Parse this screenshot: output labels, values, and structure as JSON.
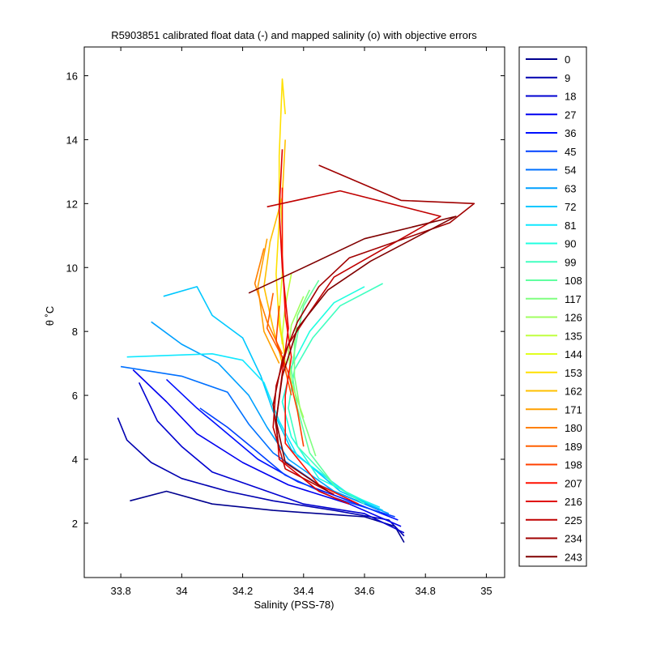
{
  "chart_data": {
    "type": "line",
    "title": "R5903851 calibrated float data (-) and mapped salinity (o) with objective errors",
    "xlabel": "Salinity (PSS-78)",
    "ylabel": "θ ˚C",
    "xlim": [
      33.68,
      35.06
    ],
    "ylim": [
      0.3,
      16.9
    ],
    "xticks": [
      33.8,
      34,
      34.2,
      34.4,
      34.6,
      34.8,
      35
    ],
    "xtick_labels": [
      "33.8",
      "34",
      "34.2",
      "34.4",
      "34.6",
      "34.8",
      "35"
    ],
    "yticks": [
      2,
      4,
      6,
      8,
      10,
      12,
      14,
      16
    ],
    "ytick_labels": [
      "2",
      "4",
      "6",
      "8",
      "10",
      "12",
      "14",
      "16"
    ],
    "grid": false,
    "legend_position": "outside-right",
    "colormap": [
      "#00008f",
      "#0000ff",
      "#0080ff",
      "#00ffff",
      "#80ff80",
      "#ffff00",
      "#ff8000",
      "#ff0000",
      "#800000"
    ],
    "profile_groups": [
      {
        "cycle": 0,
        "color": "#00008f",
        "points": [
          [
            33.83,
            2.7
          ],
          [
            33.95,
            3.0
          ],
          [
            34.1,
            2.6
          ],
          [
            34.3,
            2.4
          ],
          [
            34.45,
            2.3
          ],
          [
            34.6,
            2.2
          ],
          [
            34.7,
            1.9
          ],
          [
            34.73,
            1.4
          ]
        ]
      },
      {
        "cycle": 9,
        "color": "#0000b0",
        "points": [
          [
            33.79,
            5.3
          ],
          [
            33.82,
            4.6
          ],
          [
            33.9,
            3.9
          ],
          [
            34.0,
            3.4
          ],
          [
            34.15,
            3.0
          ],
          [
            34.3,
            2.7
          ],
          [
            34.5,
            2.4
          ],
          [
            34.68,
            2.1
          ],
          [
            34.73,
            1.6
          ]
        ]
      },
      {
        "cycle": 18,
        "color": "#0000d0",
        "points": [
          [
            33.86,
            6.4
          ],
          [
            33.92,
            5.2
          ],
          [
            34.0,
            4.4
          ],
          [
            34.1,
            3.6
          ],
          [
            34.25,
            3.1
          ],
          [
            34.4,
            2.6
          ],
          [
            34.6,
            2.3
          ],
          [
            34.73,
            1.7
          ]
        ]
      },
      {
        "cycle": 27,
        "color": "#0000f0",
        "points": [
          [
            33.84,
            6.8
          ],
          [
            33.95,
            5.8
          ],
          [
            34.05,
            4.8
          ],
          [
            34.2,
            3.9
          ],
          [
            34.35,
            3.2
          ],
          [
            34.55,
            2.6
          ],
          [
            34.72,
            1.9
          ]
        ]
      },
      {
        "cycle": 36,
        "color": "#0010ff",
        "points": [
          [
            33.95,
            6.5
          ],
          [
            34.05,
            5.6
          ],
          [
            34.15,
            4.8
          ],
          [
            34.25,
            4.0
          ],
          [
            34.38,
            3.3
          ],
          [
            34.55,
            2.7
          ],
          [
            34.71,
            2.1
          ]
        ]
      },
      {
        "cycle": 45,
        "color": "#0040ff",
        "points": [
          [
            34.06,
            5.6
          ],
          [
            34.15,
            5.0
          ],
          [
            34.24,
            4.3
          ],
          [
            34.34,
            3.5
          ],
          [
            34.5,
            2.8
          ],
          [
            34.7,
            2.2
          ]
        ]
      },
      {
        "cycle": 54,
        "color": "#0070ff",
        "points": [
          [
            33.8,
            6.9
          ],
          [
            34.0,
            6.6
          ],
          [
            34.15,
            6.1
          ],
          [
            34.22,
            5.1
          ],
          [
            34.3,
            4.2
          ],
          [
            34.45,
            3.2
          ],
          [
            34.65,
            2.4
          ]
        ]
      },
      {
        "cycle": 63,
        "color": "#00a0ff",
        "points": [
          [
            33.9,
            8.3
          ],
          [
            34.0,
            7.6
          ],
          [
            34.12,
            7.0
          ],
          [
            34.22,
            6.0
          ],
          [
            34.28,
            5.0
          ],
          [
            34.35,
            4.0
          ],
          [
            34.5,
            3.0
          ],
          [
            34.68,
            2.3
          ]
        ]
      },
      {
        "cycle": 72,
        "color": "#00c8ff",
        "points": [
          [
            33.94,
            9.1
          ],
          [
            34.05,
            9.4
          ],
          [
            34.1,
            8.5
          ],
          [
            34.2,
            7.8
          ],
          [
            34.26,
            6.6
          ],
          [
            34.3,
            5.5
          ],
          [
            34.36,
            4.3
          ],
          [
            34.52,
            3.0
          ],
          [
            34.66,
            2.4
          ]
        ]
      },
      {
        "cycle": 81,
        "color": "#10e8ff",
        "points": [
          [
            33.82,
            7.2
          ],
          [
            34.1,
            7.3
          ],
          [
            34.2,
            7.1
          ],
          [
            34.27,
            6.4
          ],
          [
            34.32,
            5.2
          ],
          [
            34.38,
            4.1
          ],
          [
            34.55,
            2.9
          ],
          [
            34.65,
            2.5
          ]
        ]
      },
      {
        "cycle": 90,
        "color": "#20ffe0",
        "points": [
          [
            34.6,
            9.4
          ],
          [
            34.5,
            8.9
          ],
          [
            34.42,
            8.0
          ],
          [
            34.36,
            6.9
          ],
          [
            34.33,
            5.8
          ],
          [
            34.36,
            4.7
          ],
          [
            34.45,
            3.4
          ],
          [
            34.62,
            2.6
          ]
        ]
      },
      {
        "cycle": 99,
        "color": "#40ffc0",
        "points": [
          [
            34.66,
            9.5
          ],
          [
            34.52,
            8.8
          ],
          [
            34.43,
            7.8
          ],
          [
            34.37,
            6.8
          ],
          [
            34.35,
            5.6
          ],
          [
            34.38,
            4.4
          ],
          [
            34.5,
            3.2
          ],
          [
            34.6,
            2.6
          ]
        ]
      },
      {
        "cycle": 108,
        "color": "#60ffa0",
        "points": [
          [
            34.45,
            9.6
          ],
          [
            34.4,
            8.8
          ],
          [
            34.38,
            7.9
          ],
          [
            34.36,
            6.8
          ],
          [
            34.38,
            5.6
          ],
          [
            34.42,
            4.2
          ],
          [
            34.5,
            3.2
          ]
        ]
      },
      {
        "cycle": 117,
        "color": "#80ff80",
        "points": [
          [
            34.42,
            9.3
          ],
          [
            34.38,
            8.5
          ],
          [
            34.37,
            7.6
          ],
          [
            34.37,
            6.6
          ],
          [
            34.39,
            5.5
          ],
          [
            34.44,
            4.1
          ]
        ]
      },
      {
        "cycle": 126,
        "color": "#a0ff60",
        "points": [
          [
            34.4,
            9.1
          ],
          [
            34.36,
            8.2
          ],
          [
            34.35,
            7.4
          ],
          [
            34.36,
            6.4
          ],
          [
            34.4,
            5.3
          ]
        ]
      },
      {
        "cycle": 135,
        "color": "#c0ff40",
        "points": [
          [
            34.36,
            9.8
          ],
          [
            34.34,
            8.8
          ],
          [
            34.33,
            7.9
          ],
          [
            34.34,
            7.0
          ]
        ]
      },
      {
        "cycle": 144,
        "color": "#e0ff20",
        "points": [
          [
            34.32,
            12.6
          ],
          [
            34.33,
            11.2
          ],
          [
            34.33,
            9.8
          ],
          [
            34.32,
            8.6
          ],
          [
            34.33,
            7.6
          ]
        ]
      },
      {
        "cycle": 153,
        "color": "#ffe000",
        "points": [
          [
            34.34,
            14.8
          ],
          [
            34.33,
            15.9
          ],
          [
            34.32,
            13.5
          ],
          [
            34.32,
            11.5
          ],
          [
            34.31,
            9.8
          ],
          [
            34.32,
            8.2
          ],
          [
            34.34,
            7.2
          ]
        ]
      },
      {
        "cycle": 162,
        "color": "#ffc000",
        "points": [
          [
            34.34,
            14.0
          ],
          [
            34.33,
            12.2
          ],
          [
            34.29,
            10.8
          ],
          [
            34.27,
            9.4
          ],
          [
            34.3,
            8.1
          ],
          [
            34.33,
            7.0
          ]
        ]
      },
      {
        "cycle": 171,
        "color": "#ffa000",
        "points": [
          [
            34.28,
            10.9
          ],
          [
            34.25,
            9.4
          ],
          [
            34.27,
            8.0
          ],
          [
            34.32,
            7.0
          ]
        ]
      },
      {
        "cycle": 180,
        "color": "#ff8000",
        "points": [
          [
            34.27,
            10.6
          ],
          [
            34.24,
            9.5
          ],
          [
            34.28,
            8.3
          ],
          [
            34.33,
            7.3
          ]
        ]
      },
      {
        "cycle": 189,
        "color": "#ff6000",
        "points": [
          [
            34.3,
            9.2
          ],
          [
            34.28,
            8.1
          ],
          [
            34.33,
            7.2
          ],
          [
            34.36,
            6.0
          ]
        ]
      },
      {
        "cycle": 198,
        "color": "#ff4000",
        "points": [
          [
            34.32,
            8.8
          ],
          [
            34.31,
            7.7
          ],
          [
            34.35,
            6.7
          ],
          [
            34.38,
            5.5
          ],
          [
            34.4,
            4.4
          ]
        ]
      },
      {
        "cycle": 207,
        "color": "#ff1000",
        "points": [
          [
            34.33,
            12.5
          ],
          [
            34.33,
            10.4
          ],
          [
            34.34,
            8.5
          ],
          [
            34.36,
            7.2
          ],
          [
            34.34,
            6.0
          ],
          [
            34.34,
            4.5
          ],
          [
            34.45,
            3.2
          ],
          [
            34.58,
            2.6
          ]
        ]
      },
      {
        "cycle": 216,
        "color": "#e00000",
        "points": [
          [
            34.33,
            13.7
          ],
          [
            34.32,
            11.8
          ],
          [
            34.33,
            10.0
          ],
          [
            34.35,
            8.1
          ],
          [
            34.33,
            6.7
          ],
          [
            34.31,
            5.2
          ],
          [
            34.32,
            4.0
          ],
          [
            34.45,
            3.0
          ],
          [
            34.55,
            2.6
          ]
        ]
      },
      {
        "cycle": 225,
        "color": "#c00000",
        "points": [
          [
            34.28,
            11.9
          ],
          [
            34.52,
            12.4
          ],
          [
            34.85,
            11.6
          ],
          [
            34.5,
            9.7
          ],
          [
            34.42,
            8.6
          ],
          [
            34.35,
            7.6
          ],
          [
            34.31,
            6.3
          ],
          [
            34.3,
            5.0
          ],
          [
            34.34,
            3.7
          ],
          [
            34.5,
            2.9
          ]
        ]
      },
      {
        "cycle": 234,
        "color": "#a00000",
        "points": [
          [
            34.45,
            13.2
          ],
          [
            34.72,
            12.1
          ],
          [
            34.96,
            12.0
          ],
          [
            34.88,
            11.4
          ],
          [
            34.55,
            10.3
          ],
          [
            34.45,
            9.4
          ],
          [
            34.38,
            8.3
          ],
          [
            34.33,
            7.1
          ],
          [
            34.3,
            5.7
          ],
          [
            34.32,
            4.3
          ]
        ]
      },
      {
        "cycle": 243,
        "color": "#800000",
        "points": [
          [
            34.22,
            9.2
          ],
          [
            34.4,
            10.0
          ],
          [
            34.6,
            10.9
          ],
          [
            34.9,
            11.6
          ],
          [
            34.62,
            10.2
          ],
          [
            34.48,
            9.3
          ],
          [
            34.38,
            8.1
          ],
          [
            34.33,
            6.6
          ],
          [
            34.31,
            5.2
          ],
          [
            34.34,
            3.9
          ],
          [
            34.48,
            3.0
          ]
        ]
      }
    ]
  },
  "legend": {
    "entries": [
      {
        "label": "0",
        "color": "#00008f"
      },
      {
        "label": "9",
        "color": "#0000b0"
      },
      {
        "label": "18",
        "color": "#0000d0"
      },
      {
        "label": "27",
        "color": "#0000f0"
      },
      {
        "label": "36",
        "color": "#0010ff"
      },
      {
        "label": "45",
        "color": "#0040ff"
      },
      {
        "label": "54",
        "color": "#0070ff"
      },
      {
        "label": "63",
        "color": "#00a0ff"
      },
      {
        "label": "72",
        "color": "#00c8ff"
      },
      {
        "label": "81",
        "color": "#10e8ff"
      },
      {
        "label": "90",
        "color": "#20ffe0"
      },
      {
        "label": "99",
        "color": "#40ffc0"
      },
      {
        "label": "108",
        "color": "#60ffa0"
      },
      {
        "label": "117",
        "color": "#80ff80"
      },
      {
        "label": "126",
        "color": "#a0ff60"
      },
      {
        "label": "135",
        "color": "#c0ff40"
      },
      {
        "label": "144",
        "color": "#e0ff20"
      },
      {
        "label": "153",
        "color": "#ffe000"
      },
      {
        "label": "162",
        "color": "#ffc000"
      },
      {
        "label": "171",
        "color": "#ffa000"
      },
      {
        "label": "180",
        "color": "#ff8000"
      },
      {
        "label": "189",
        "color": "#ff6000"
      },
      {
        "label": "198",
        "color": "#ff4000"
      },
      {
        "label": "207",
        "color": "#ff1000"
      },
      {
        "label": "216",
        "color": "#e00000"
      },
      {
        "label": "225",
        "color": "#c00000"
      },
      {
        "label": "234",
        "color": "#a00000"
      },
      {
        "label": "243",
        "color": "#800000"
      }
    ]
  }
}
